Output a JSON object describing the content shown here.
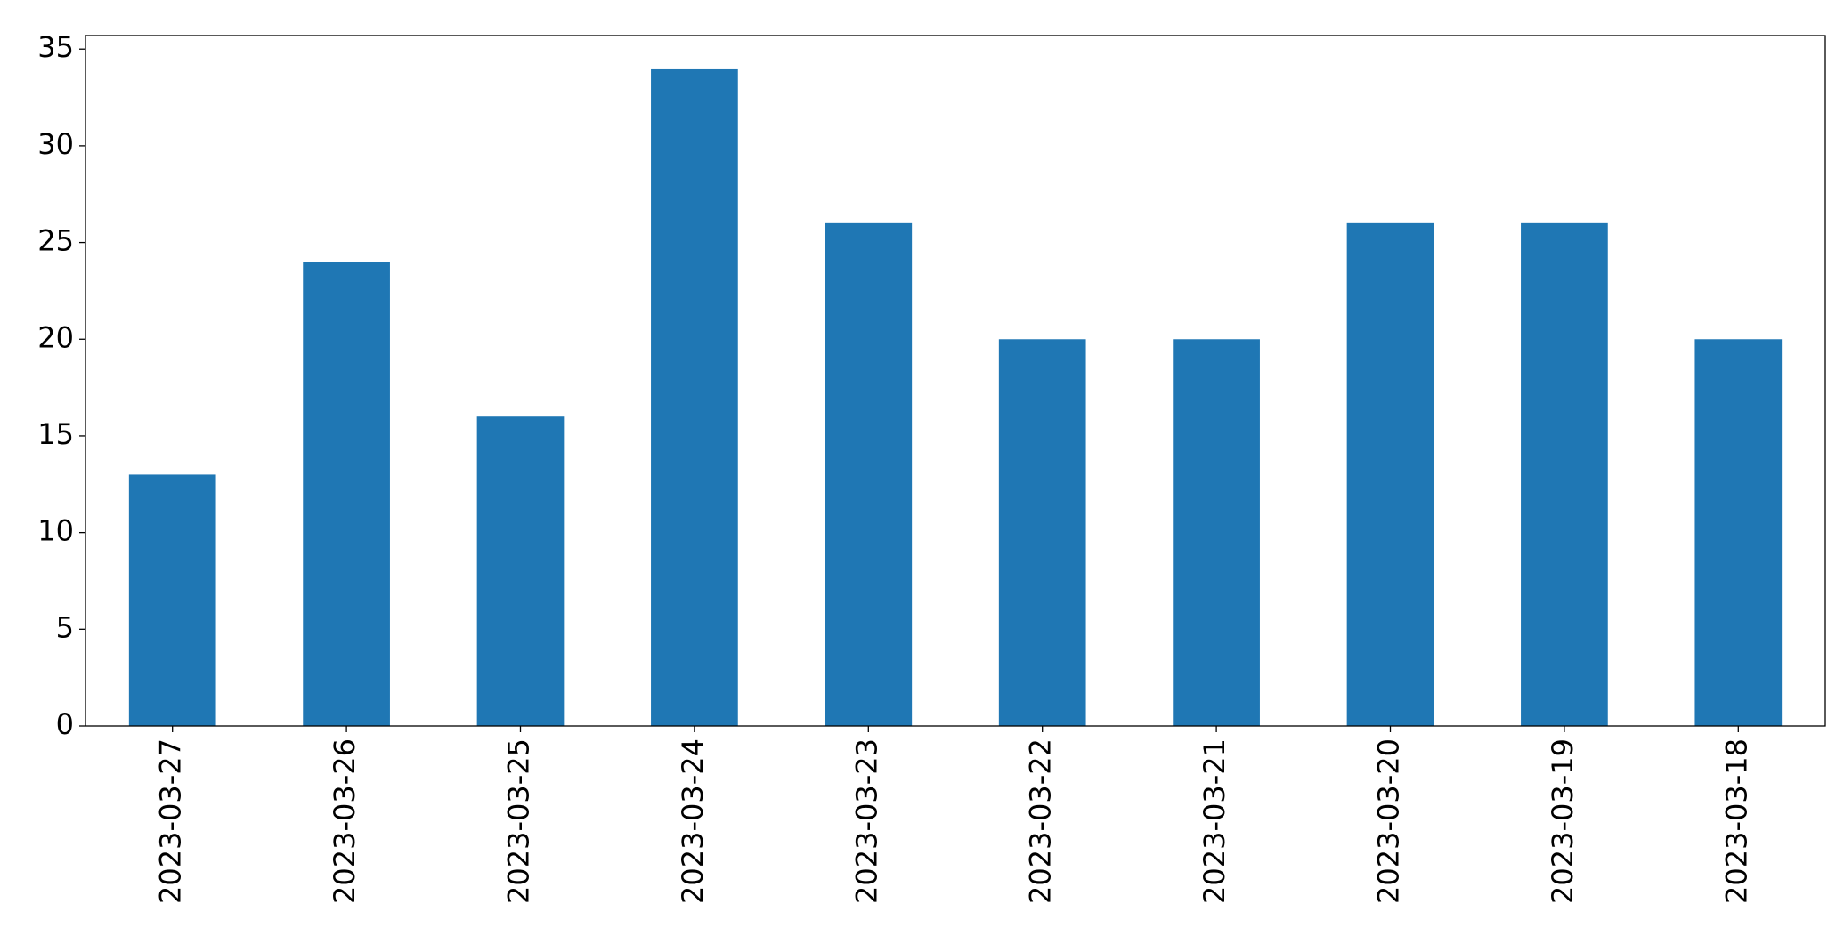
{
  "chart_data": {
    "type": "bar",
    "categories": [
      "2023-03-27",
      "2023-03-26",
      "2023-03-25",
      "2023-03-24",
      "2023-03-23",
      "2023-03-22",
      "2023-03-21",
      "2023-03-20",
      "2023-03-19",
      "2023-03-18"
    ],
    "values": [
      13,
      24,
      16,
      34,
      26,
      20,
      20,
      26,
      26,
      20
    ],
    "color": "#1f77b4",
    "ylim": [
      0,
      35.7
    ],
    "yticks": [
      0,
      5,
      10,
      15,
      20,
      25,
      30,
      35
    ],
    "grid": false
  }
}
